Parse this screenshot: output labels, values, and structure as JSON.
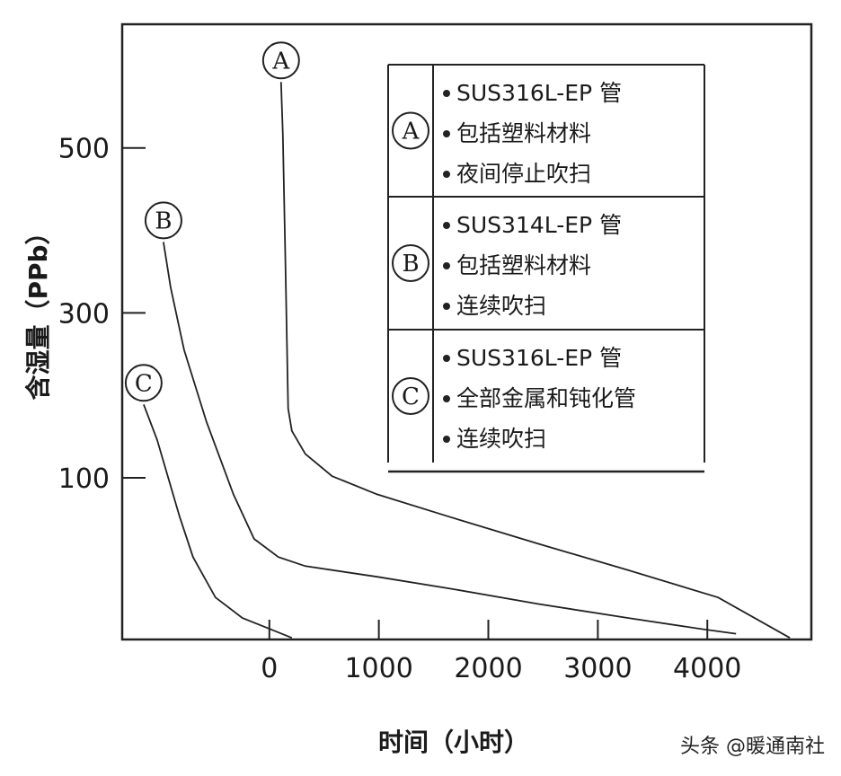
{
  "chart_data": {
    "type": "line",
    "title": "",
    "xlabel": "时间（小时）",
    "ylabel": "含湿量（PPb）",
    "xlim": [
      -1344,
      4950
    ],
    "ylim": [
      -96,
      650
    ],
    "xticks": [
      0,
      1000,
      2000,
      3000,
      4000
    ],
    "yticks": [
      100,
      300,
      500
    ],
    "grid": false,
    "legend_position": "top-right",
    "series": [
      {
        "name": "A",
        "lines": [
          "SUS316L-EP 管",
          "包括塑料材料",
          "夜间停止吹扫"
        ],
        "x": [
          107,
          123,
          148,
          172,
          205,
          328,
          574,
          984,
          1639,
          2459,
          3279,
          4098,
          4754
        ],
        "y": [
          580,
          516,
          353,
          184,
          157,
          129,
          102,
          80,
          53,
          20,
          -12,
          -45,
          -94
        ]
      },
      {
        "name": "B",
        "lines": [
          "SUS314L-EP 管",
          "包括塑料材料",
          "连续吹扫"
        ],
        "x": [
          -967,
          -902,
          -779,
          -574,
          -328,
          -139,
          82,
          328,
          984,
          1639,
          2459,
          3279,
          3934,
          4262
        ],
        "y": [
          386,
          331,
          255,
          168,
          80,
          26,
          4,
          -7,
          -20,
          -34,
          -53,
          -70,
          -83,
          -89
        ]
      },
      {
        "name": "C",
        "lines": [
          "SUS316L-EP 管",
          "全部金属和钝化管",
          "连续吹扫"
        ],
        "x": [
          -1148,
          -1025,
          -820,
          -697,
          -492,
          -246,
          0,
          205
        ],
        "y": [
          189,
          146,
          53,
          4,
          -45,
          -70,
          -83,
          -94
        ]
      }
    ],
    "line_color": "#222222"
  },
  "watermark": "头条 @暖通南社"
}
